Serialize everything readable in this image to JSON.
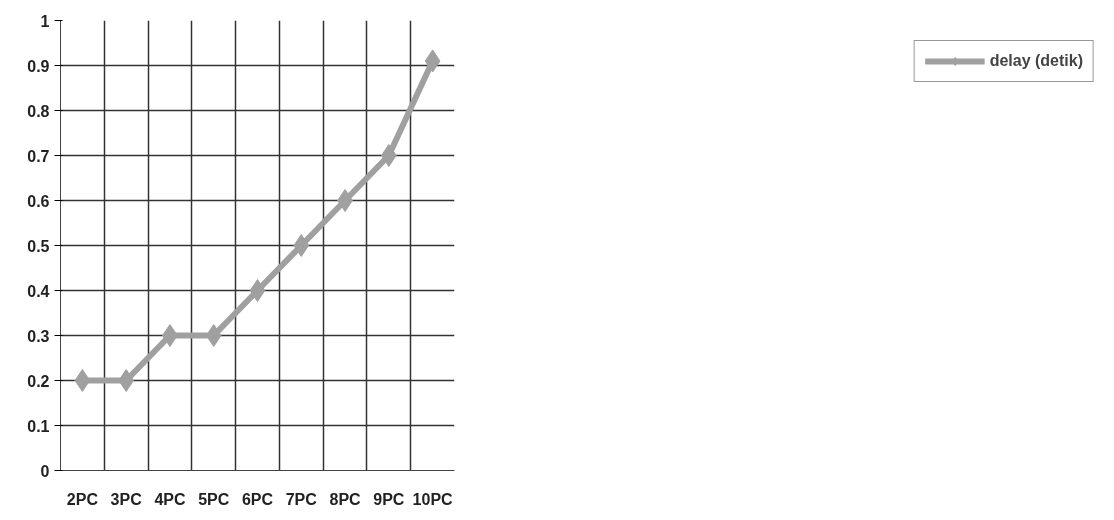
{
  "chart_data": {
    "type": "line",
    "categories": [
      "2PC",
      "3PC",
      "4PC",
      "5PC",
      "6PC",
      "7PC",
      "8PC",
      "9PC",
      "10PC"
    ],
    "series": [
      {
        "name": "delay (detik)",
        "color": "#a0a0a0",
        "values": [
          0.2,
          0.2,
          0.3,
          0.3,
          0.4,
          0.5,
          0.6,
          0.7,
          0.91
        ]
      }
    ],
    "ylim": [
      0,
      1
    ],
    "yticks": [
      0,
      0.1,
      0.2,
      0.3,
      0.4,
      0.5,
      0.6,
      0.7,
      0.8,
      0.9,
      1
    ],
    "grid": true,
    "legend": "right",
    "marker": "diamond",
    "line_style": "solid"
  }
}
